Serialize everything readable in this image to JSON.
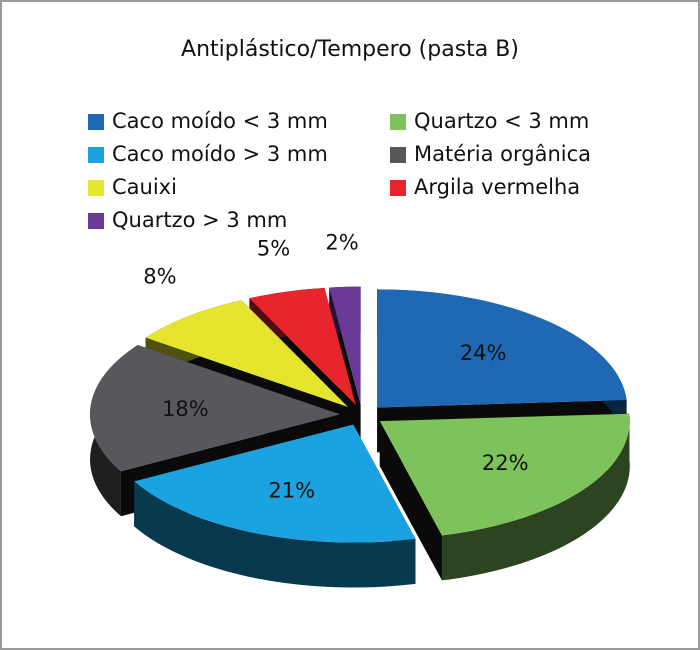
{
  "chart_data": {
    "type": "pie",
    "title": "Antiplástico/Tempero (pasta B)",
    "categories": [
      "Caco moído < 3 mm",
      "Quartzo < 3 mm",
      "Caco moído > 3 mm",
      "Matéria orgânica",
      "Cauixi",
      "Argila vermelha",
      "Quartzo > 3 mm"
    ],
    "values": [
      24,
      22,
      21,
      18,
      8,
      5,
      2
    ],
    "value_labels": [
      "24%",
      "22%",
      "21%",
      "18%",
      "8%",
      "5%",
      "2%"
    ],
    "colors": [
      "#1f68b3",
      "#7dc25a",
      "#1aa3e0",
      "#58585c",
      "#e4e52c",
      "#e8242c",
      "#6b3a98"
    ]
  }
}
